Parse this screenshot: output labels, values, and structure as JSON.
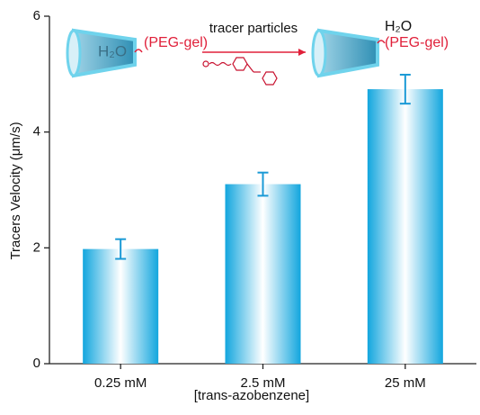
{
  "chart_data": {
    "type": "bar",
    "ylabel": "Tracers Velocity (μm/s)",
    "xlabel": "[trans-azobenzene]",
    "categories": [
      "0.25 mM",
      "2.5 mM",
      "25 mM"
    ],
    "values": [
      1.98,
      3.1,
      4.74
    ],
    "errors": [
      0.17,
      0.2,
      0.25
    ],
    "color": "#12a6de",
    "error_color": "#1a9ad6",
    "ylim": [
      0,
      6
    ],
    "yticks": [
      0,
      2,
      4,
      6
    ],
    "annotations": [
      "H₂O",
      "(PEG-gel)",
      "tracer particles",
      "H₂O",
      "(PEG-gel)"
    ]
  }
}
